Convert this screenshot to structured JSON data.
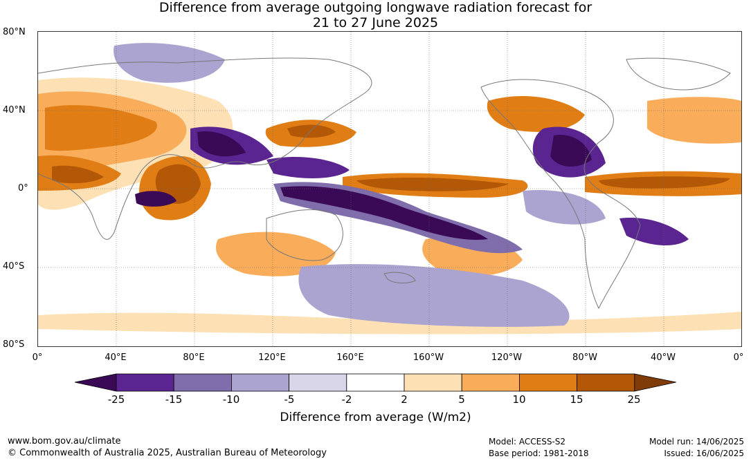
{
  "title_line1": "Difference from average outgoing longwave radiation forecast for",
  "title_line2": "21 to 27 June 2025",
  "lat_labels": [
    "80°N",
    "40°N",
    "0°",
    "40°S",
    "80°S"
  ],
  "lon_labels": [
    "0°",
    "40°E",
    "80°E",
    "120°E",
    "160°E",
    "160°W",
    "120°W",
    "80°W",
    "40°W",
    "0°"
  ],
  "colorbar": {
    "ticks": [
      "-25",
      "-15",
      "-10",
      "-5",
      "-2",
      "2",
      "5",
      "10",
      "15",
      "25"
    ],
    "colors": [
      "#3b0a57",
      "#5a2590",
      "#7f6eab",
      "#aba3d0",
      "#d9d6ea",
      "#ffffff",
      "#fde0b4",
      "#f9ad5a",
      "#e07e15",
      "#b35806",
      "#7f3b08"
    ],
    "label": "Difference from average (W/m2)"
  },
  "footer": {
    "website": "www.bom.gov.au/climate",
    "copyright": "© Commonwealth of Australia 2025, Australian Bureau of Meteorology",
    "model": "Model: ACCESS-S2",
    "base_period": "Base period: 1981-2018",
    "model_run": "Model run: 14/06/2025",
    "issued": "Issued: 16/06/2025"
  }
}
